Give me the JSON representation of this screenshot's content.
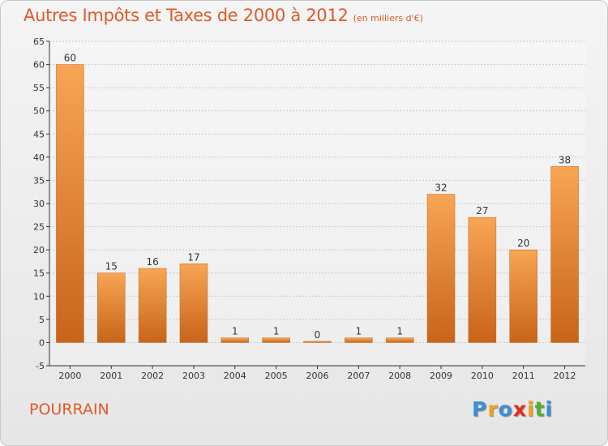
{
  "header": {
    "title": "Autres Impôts et Taxes de 2000 à 2012",
    "subtitle": "(en milliers d'€)"
  },
  "footer": {
    "place": "POURRAIN",
    "logo": [
      "P",
      "r",
      "o",
      "x",
      "i",
      "t",
      "i"
    ],
    "logo_colors": [
      "#3a8fd8",
      "#f0a020",
      "#3a8fd8",
      "#e03020",
      "#f0a020",
      "#50b030",
      "#3a8fd8"
    ]
  },
  "colors": {
    "bar_top": "#f7a554",
    "bar_bottom": "#c8641a",
    "grid": "#c8c8c8"
  },
  "chart_data": {
    "type": "bar",
    "categories": [
      "2000",
      "2001",
      "2002",
      "2003",
      "2004",
      "2005",
      "2006",
      "2007",
      "2008",
      "2009",
      "2010",
      "2011",
      "2012"
    ],
    "values": [
      60,
      15,
      16,
      17,
      1,
      1,
      0,
      1,
      1,
      32,
      27,
      20,
      38
    ],
    "data_labels": [
      "60",
      "15",
      "16",
      "17",
      "1",
      "1",
      "0",
      "1",
      "1",
      "32",
      "27",
      "20",
      "38"
    ],
    "ylim": [
      -5,
      65
    ],
    "yticks": [
      -5,
      0,
      5,
      10,
      15,
      20,
      25,
      30,
      35,
      40,
      45,
      50,
      55,
      60,
      65
    ],
    "ytick_labels": [
      "-5",
      "0",
      "5",
      "10",
      "15",
      "20",
      "25",
      "30",
      "35",
      "40",
      "45",
      "50",
      "55",
      "60",
      "65"
    ],
    "grid": true,
    "xlabel": "",
    "ylabel": ""
  }
}
